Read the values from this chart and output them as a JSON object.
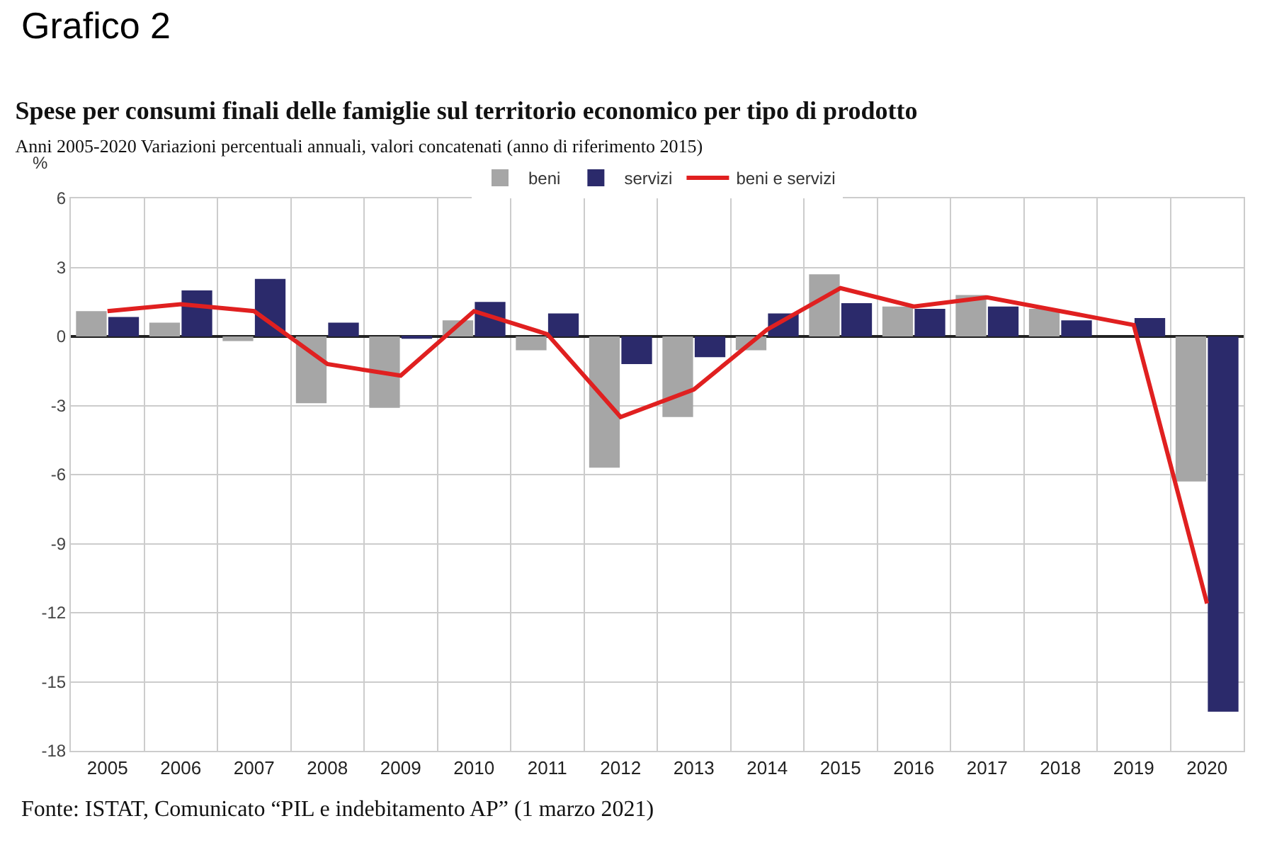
{
  "chart_data": {
    "type": "bar",
    "title": "Spese per consumi finali delle famiglie sul territorio economico per tipo di prodotto",
    "subtitle": "Anni 2005-2020 Variazioni percentuali annuali, valori concatenati (anno di riferimento 2015)",
    "ylabel": "%",
    "annotations": [
      "Grafico 2",
      "Fonte: ISTAT, Comunicato “PIL e indebitamento AP” (1 marzo 2021)"
    ],
    "categories": [
      "2005",
      "2006",
      "2007",
      "2008",
      "2009",
      "2010",
      "2011",
      "2012",
      "2013",
      "2014",
      "2015",
      "2016",
      "2017",
      "2018",
      "2019",
      "2020"
    ],
    "series": [
      {
        "name": "beni",
        "color": "#a6a6a6",
        "values": [
          1.1,
          0.6,
          -0.2,
          -2.9,
          -3.1,
          0.7,
          -0.6,
          -5.7,
          -3.5,
          -0.6,
          2.7,
          1.3,
          1.8,
          1.2,
          0.0,
          -6.3
        ]
      },
      {
        "name": "servizi",
        "color": "#2b2a6b",
        "values": [
          0.85,
          2.0,
          2.5,
          0.6,
          -0.1,
          1.5,
          1.0,
          -1.2,
          -0.9,
          1.0,
          1.45,
          1.2,
          1.3,
          0.7,
          0.8,
          -16.3
        ]
      },
      {
        "name": "beni e servizi",
        "type": "line",
        "color": "#e02020",
        "values": [
          1.1,
          1.4,
          1.1,
          -1.2,
          -1.7,
          1.1,
          0.1,
          -3.5,
          -2.3,
          0.3,
          2.1,
          1.3,
          1.7,
          1.1,
          0.5,
          -11.6
        ]
      }
    ],
    "ylim": [
      -18,
      6
    ],
    "yticks": [
      -18,
      -15,
      -12,
      -9,
      -6,
      -3,
      0,
      3,
      6
    ],
    "grid": true,
    "legend": "top",
    "marker": "none",
    "line_style": "solid"
  }
}
